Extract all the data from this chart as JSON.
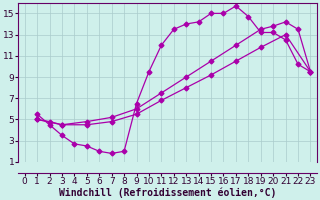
{
  "xlabel": "Windchill (Refroidissement éolien,°C)",
  "bg_color": "#cff0eb",
  "grid_color": "#aacccc",
  "line_color": "#aa00aa",
  "xlim": [
    -0.5,
    23.5
  ],
  "ylim": [
    1,
    16
  ],
  "xticks": [
    0,
    1,
    2,
    3,
    4,
    5,
    6,
    7,
    8,
    9,
    10,
    11,
    12,
    13,
    14,
    15,
    16,
    17,
    18,
    19,
    20,
    21,
    22,
    23
  ],
  "yticks": [
    1,
    3,
    5,
    7,
    9,
    11,
    13,
    15
  ],
  "line1_x": [
    1,
    2,
    3,
    4,
    5,
    6,
    7,
    8,
    9,
    10,
    11,
    12,
    13,
    14,
    15,
    16,
    17,
    18,
    19,
    20,
    21,
    22,
    23
  ],
  "line1_y": [
    5.5,
    4.5,
    3.5,
    2.7,
    2.5,
    2.0,
    1.8,
    2.0,
    6.5,
    9.5,
    12.0,
    13.5,
    14.0,
    14.2,
    15.0,
    15.0,
    15.7,
    14.7,
    13.2,
    13.2,
    12.5,
    10.2,
    9.5
  ],
  "line2_x": [
    1,
    2,
    3,
    5,
    7,
    9,
    11,
    13,
    15,
    17,
    19,
    20,
    21,
    22,
    23
  ],
  "line2_y": [
    5.0,
    4.8,
    4.5,
    4.8,
    5.2,
    6.0,
    7.5,
    9.0,
    10.5,
    12.0,
    13.5,
    13.8,
    14.2,
    13.5,
    9.5
  ],
  "line3_x": [
    1,
    3,
    5,
    7,
    9,
    11,
    13,
    15,
    17,
    19,
    21,
    23
  ],
  "line3_y": [
    5.0,
    4.5,
    4.5,
    4.8,
    5.5,
    6.8,
    8.0,
    9.2,
    10.5,
    11.8,
    13.0,
    9.5
  ],
  "xlabel_fontsize": 7,
  "tick_fontsize": 6.5
}
